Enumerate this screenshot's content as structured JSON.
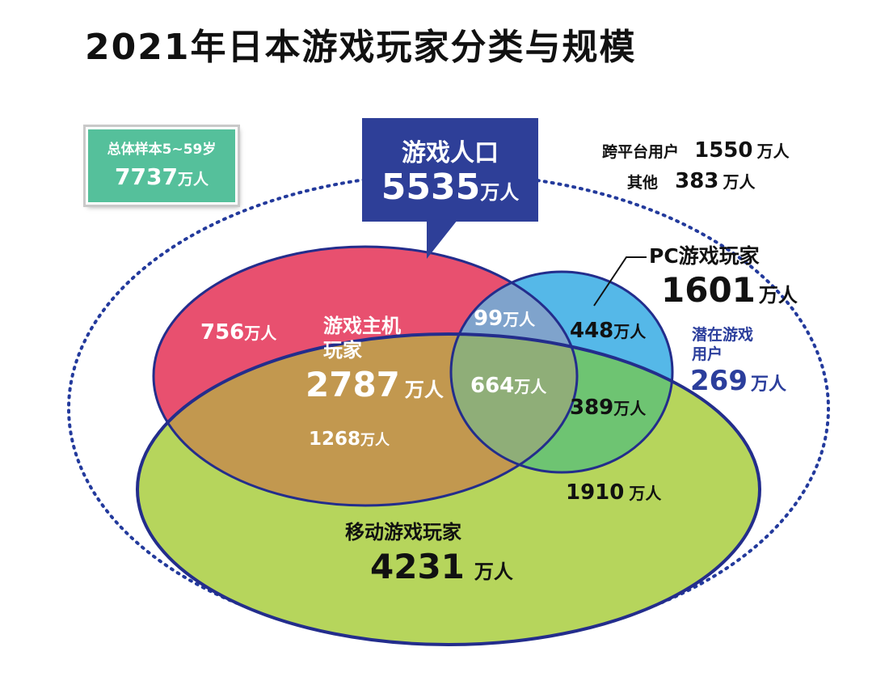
{
  "title": "2021年日本游戏玩家分类与规模",
  "unit": "万人",
  "sample": {
    "label": "总体样本5~59岁",
    "value": "7737"
  },
  "population": {
    "label": "游戏人口",
    "value": "5535"
  },
  "cross_platform": {
    "label": "跨平台用户",
    "value": "1550"
  },
  "other": {
    "label": "其他",
    "value": "383"
  },
  "pc": {
    "label": "PC游戏玩家",
    "value": "1601"
  },
  "potential": {
    "label_line1": "潜在游戏",
    "label_line2": "用户",
    "value": "269"
  },
  "console": {
    "label_line1": "游戏主机",
    "label_line2": "玩家",
    "value": "2787"
  },
  "mobile": {
    "label": "移动游戏玩家",
    "value": "4231"
  },
  "segments": {
    "console_only": "756",
    "console_pc": "99",
    "pc_only": "448",
    "all_three": "664",
    "pc_mobile": "389",
    "console_mobile": "1268",
    "mobile_only": "1910"
  },
  "colors": {
    "console": "#e8506f",
    "pc": "#55b8e8",
    "mobile": "#b6d55c",
    "outline": "#232d8c",
    "population_box": "#2e3f98",
    "sample_box": "#55c09b"
  }
}
